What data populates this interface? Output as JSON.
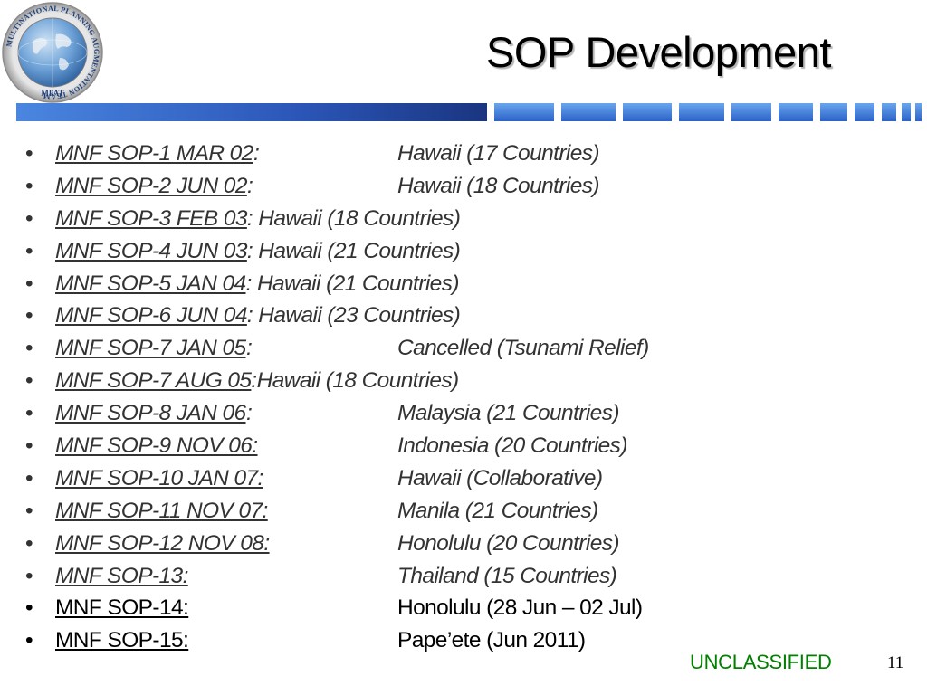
{
  "logo": {
    "ring_text": "MULTINATIONAL PLANNING AUGMENTATION TEAM",
    "acronym": "MPAT"
  },
  "title": "SOP Development",
  "items": [
    {
      "code": "MNF SOP-1 MAR 02",
      "sep": ":",
      "location": "Hawaii (17 Countries)",
      "style": "italic",
      "tab": true
    },
    {
      "code": "MNF SOP-2 JUN 02",
      "sep": ":",
      "location": "Hawaii (18 Countries)",
      "style": "italic",
      "tab": true
    },
    {
      "code": "MNF SOP-3 FEB 03",
      "sep": ": ",
      "location": "Hawaii (18 Countries)",
      "style": "italic",
      "tab": false
    },
    {
      "code": "MNF SOP-4 JUN 03",
      "sep": ": ",
      "location": "Hawaii (21 Countries)",
      "style": "italic",
      "tab": false
    },
    {
      "code": "MNF SOP-5 JAN 04",
      "sep": ": ",
      "location": "Hawaii (21 Countries)",
      "style": "italic",
      "tab": false
    },
    {
      "code": "MNF SOP-6 JUN 04",
      "sep": ": ",
      "location": "Hawaii (23 Countries)",
      "style": "italic",
      "tab": false
    },
    {
      "code": "MNF SOP-7 JAN 05",
      "sep": ":",
      "location": "Cancelled  (Tsunami Relief)",
      "style": "italic",
      "tab": true
    },
    {
      "code": "MNF SOP-7 AUG 05",
      "sep": ":",
      "location": "Hawaii (18 Countries)",
      "style": "italic",
      "tab": false
    },
    {
      "code": "MNF SOP-8 JAN 06",
      "sep": ":",
      "location": "Malaysia (21 Countries)",
      "style": "italic",
      "tab": true
    },
    {
      "code": "MNF SOP-9 NOV 06:",
      "sep": "",
      "location": "Indonesia (20 Countries)",
      "style": "italic",
      "tab": true
    },
    {
      "code": "MNF SOP-10 JAN 07:",
      "sep": "",
      "location": "Hawaii (Collaborative)",
      "style": "italic",
      "tab": true
    },
    {
      "code": "MNF SOP-11 NOV 07:",
      "sep": "",
      "location": "Manila (21 Countries)",
      "style": "italic",
      "tab": true
    },
    {
      "code": "MNF SOP-12 NOV 08:",
      "sep": "",
      "location": "Honolulu (20 Countries)",
      "style": "italic",
      "tab": true
    },
    {
      "code": "MNF SOP-13:",
      "sep": "",
      "location": "Thailand (15 Countries)",
      "style": "italic",
      "tab": true
    },
    {
      "code": "MNF SOP-14:",
      "sep": "",
      "location": "Honolulu (28 Jun – 02 Jul)",
      "style": "plain",
      "tab": true
    },
    {
      "code": "MNF SOP-15:",
      "sep": "",
      "location": "Pape’ete (Jun 2011)",
      "style": "plain",
      "tab": true
    }
  ],
  "bullet_char": "•",
  "footer": {
    "classification": "UNCLASSIFIED",
    "page_number": "11"
  },
  "colors": {
    "bar_dark": "#1f3a8a",
    "bar_mid": "#2f6fd6",
    "bar_light": "#4a90e8",
    "classification": "#008000",
    "italic_text": "#333333"
  }
}
